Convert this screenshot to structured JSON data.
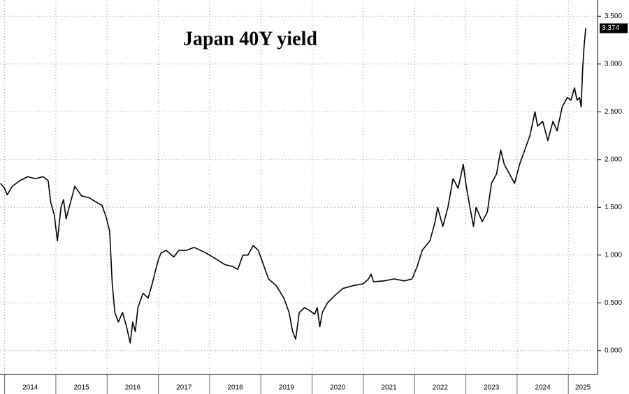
{
  "chart_data": {
    "type": "line",
    "title": "Japan 40Y yield",
    "color": "#000000",
    "x": [
      2013.92,
      2014.0,
      2014.05,
      2014.15,
      2014.3,
      2014.45,
      2014.6,
      2014.75,
      2014.85,
      2014.9,
      2014.97,
      2015.03,
      2015.1,
      2015.15,
      2015.2,
      2015.3,
      2015.37,
      2015.5,
      2015.65,
      2015.8,
      2015.9,
      2015.98,
      2016.05,
      2016.1,
      2016.15,
      2016.22,
      2016.3,
      2016.38,
      2016.45,
      2016.5,
      2016.55,
      2016.6,
      2016.7,
      2016.8,
      2016.88,
      2016.95,
      2017.0,
      2017.05,
      2017.15,
      2017.3,
      2017.4,
      2017.55,
      2017.7,
      2017.9,
      2018.0,
      2018.15,
      2018.3,
      2018.45,
      2018.55,
      2018.65,
      2018.75,
      2018.85,
      2018.95,
      2019.05,
      2019.15,
      2019.3,
      2019.45,
      2019.55,
      2019.62,
      2019.68,
      2019.75,
      2019.85,
      2019.95,
      2020.05,
      2020.1,
      2020.15,
      2020.2,
      2020.3,
      2020.45,
      2020.6,
      2020.8,
      2021.0,
      2021.1,
      2021.15,
      2021.2,
      2021.4,
      2021.6,
      2021.8,
      2021.95,
      2022.05,
      2022.15,
      2022.3,
      2022.4,
      2022.45,
      2022.55,
      2022.65,
      2022.75,
      2022.85,
      2022.95,
      2023.0,
      2023.08,
      2023.15,
      2023.2,
      2023.32,
      2023.42,
      2023.5,
      2023.6,
      2023.68,
      2023.75,
      2023.85,
      2023.95,
      2024.05,
      2024.15,
      2024.25,
      2024.35,
      2024.4,
      2024.5,
      2024.6,
      2024.7,
      2024.78,
      2024.88,
      2024.98,
      2025.05,
      2025.12,
      2025.17,
      2025.22,
      2025.25,
      2025.28,
      2025.31,
      2025.34
    ],
    "values": [
      1.75,
      1.7,
      1.63,
      1.72,
      1.78,
      1.82,
      1.8,
      1.82,
      1.78,
      1.55,
      1.42,
      1.15,
      1.5,
      1.58,
      1.38,
      1.58,
      1.72,
      1.62,
      1.6,
      1.55,
      1.52,
      1.4,
      1.25,
      0.7,
      0.4,
      0.3,
      0.4,
      0.25,
      0.08,
      0.3,
      0.2,
      0.45,
      0.6,
      0.55,
      0.7,
      0.85,
      0.95,
      1.02,
      1.05,
      0.98,
      1.05,
      1.05,
      1.08,
      1.03,
      1.0,
      0.95,
      0.9,
      0.88,
      0.85,
      1.0,
      1.0,
      1.1,
      1.05,
      0.9,
      0.75,
      0.68,
      0.55,
      0.4,
      0.2,
      0.12,
      0.4,
      0.45,
      0.42,
      0.38,
      0.45,
      0.25,
      0.4,
      0.5,
      0.58,
      0.65,
      0.68,
      0.7,
      0.75,
      0.8,
      0.72,
      0.73,
      0.75,
      0.73,
      0.75,
      0.88,
      1.05,
      1.15,
      1.35,
      1.5,
      1.3,
      1.5,
      1.8,
      1.7,
      1.95,
      1.75,
      1.5,
      1.3,
      1.5,
      1.35,
      1.45,
      1.75,
      1.85,
      2.1,
      1.95,
      1.85,
      1.75,
      1.95,
      2.1,
      2.25,
      2.5,
      2.35,
      2.4,
      2.2,
      2.4,
      2.3,
      2.55,
      2.65,
      2.62,
      2.75,
      2.62,
      2.65,
      2.55,
      2.95,
      3.2,
      3.374
    ],
    "last_label": "3.374",
    "xlim": [
      2013.91,
      2025.57
    ],
    "xticks": [
      {
        "value": 2014,
        "label": "2014"
      },
      {
        "value": 2015,
        "label": "2015"
      },
      {
        "value": 2016,
        "label": "2016"
      },
      {
        "value": 2017,
        "label": "2017"
      },
      {
        "value": 2018,
        "label": "2018"
      },
      {
        "value": 2019,
        "label": "2019"
      },
      {
        "value": 2020,
        "label": "2020"
      },
      {
        "value": 2021,
        "label": "2021"
      },
      {
        "value": 2022,
        "label": "2022"
      },
      {
        "value": 2023,
        "label": "2023"
      },
      {
        "value": 2024,
        "label": "2024"
      },
      {
        "value": 2025,
        "label": "2025"
      }
    ],
    "ylim": [
      -0.25,
      3.67
    ],
    "yticks": [
      {
        "value": 0,
        "label": "0.000"
      },
      {
        "value": 0.5,
        "label": "0.500"
      },
      {
        "value": 1,
        "label": "1.000"
      },
      {
        "value": 1.5,
        "label": "1.500"
      },
      {
        "value": 2,
        "label": "2.000"
      },
      {
        "value": 2.5,
        "label": "2.500"
      },
      {
        "value": 3,
        "label": "3.000"
      },
      {
        "value": 3.5,
        "label": "3.500"
      }
    ],
    "grid": true
  }
}
